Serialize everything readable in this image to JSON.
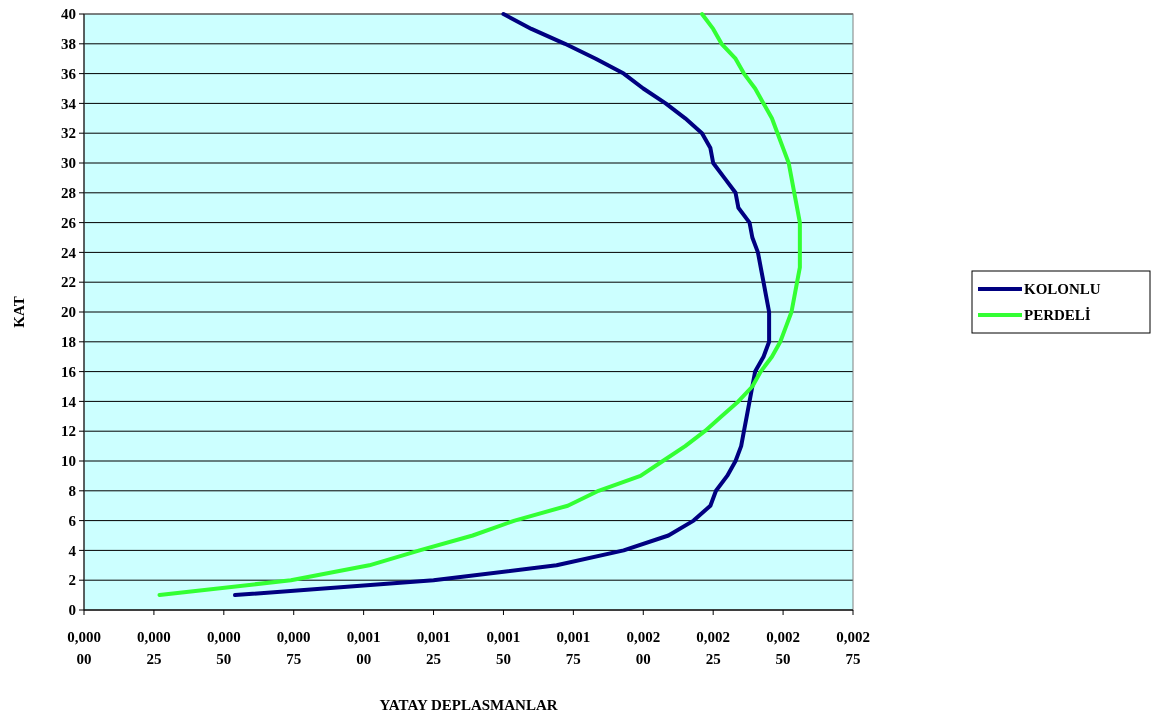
{
  "chart_data": {
    "type": "line",
    "xlabel": "YATAY DEPLASMANLAR",
    "ylabel": "KAT",
    "series": [
      {
        "name": "KOLONLU",
        "color": "#000080",
        "values": [
          1,
          2,
          3,
          4,
          5,
          6,
          7,
          8,
          9,
          10,
          11,
          12,
          13,
          14,
          15,
          16,
          17,
          18,
          19,
          20,
          21,
          22,
          23,
          24,
          25,
          26,
          27,
          28,
          29,
          30,
          31,
          32,
          33,
          34,
          35,
          36,
          37,
          38,
          39,
          40
        ],
        "x": [
          0.00054,
          0.00125,
          0.00169,
          0.00193,
          0.00209,
          0.00218,
          0.00224,
          0.00226,
          0.0023,
          0.00233,
          0.00235,
          0.00236,
          0.00237,
          0.00238,
          0.00239,
          0.0024,
          0.00243,
          0.00245,
          0.00245,
          0.00245,
          0.00244,
          0.00243,
          0.00242,
          0.00241,
          0.00239,
          0.00238,
          0.00234,
          0.00233,
          0.00229,
          0.00225,
          0.00224,
          0.00221,
          0.00215,
          0.00208,
          0.002,
          0.00193,
          0.00183,
          0.00172,
          0.0016,
          0.0015
        ]
      },
      {
        "name": "PERDELİ",
        "color": "#33ff33",
        "values": [
          1,
          2,
          3,
          4,
          5,
          6,
          7,
          8,
          9,
          10,
          11,
          12,
          13,
          14,
          15,
          16,
          17,
          18,
          19,
          20,
          21,
          22,
          23,
          24,
          25,
          26,
          27,
          28,
          29,
          30,
          31,
          32,
          33,
          34,
          35,
          36,
          37,
          38,
          39,
          40
        ],
        "x": [
          0.00027,
          0.00074,
          0.00102,
          0.0012,
          0.00139,
          0.00154,
          0.00173,
          0.00184,
          0.00199,
          0.00207,
          0.00215,
          0.00222,
          0.00228,
          0.00234,
          0.00239,
          0.00242,
          0.00246,
          0.00249,
          0.00251,
          0.00253,
          0.00254,
          0.00255,
          0.00256,
          0.00256,
          0.00256,
          0.00256,
          0.00255,
          0.00254,
          0.00253,
          0.00252,
          0.0025,
          0.00248,
          0.00246,
          0.00243,
          0.0024,
          0.00236,
          0.00233,
          0.00228,
          0.00225,
          0.00221
        ]
      }
    ],
    "xlim": [
      0,
      0.00275
    ],
    "xticks": [
      {
        "value": 0,
        "label": "0,00000"
      },
      {
        "value": 0.00025,
        "label": "0,00025"
      },
      {
        "value": 0.0005,
        "label": "0,00050"
      },
      {
        "value": 0.00075,
        "label": "0,00075"
      },
      {
        "value": 0.001,
        "label": "0,00100"
      },
      {
        "value": 0.00125,
        "label": "0,00125"
      },
      {
        "value": 0.0015,
        "label": "0,00150"
      },
      {
        "value": 0.00175,
        "label": "0,00175"
      },
      {
        "value": 0.002,
        "label": "0,00200"
      },
      {
        "value": 0.00225,
        "label": "0,00225"
      },
      {
        "value": 0.0025,
        "label": "0,00250"
      },
      {
        "value": 0.00275,
        "label": "0,00275"
      }
    ],
    "ylim": [
      0,
      40
    ],
    "yticks": [
      0,
      2,
      4,
      6,
      8,
      10,
      12,
      14,
      16,
      18,
      20,
      22,
      24,
      26,
      28,
      30,
      32,
      34,
      36,
      38,
      40
    ],
    "grid": "y",
    "legend": "right",
    "marker": "none",
    "line_style": "solid"
  }
}
